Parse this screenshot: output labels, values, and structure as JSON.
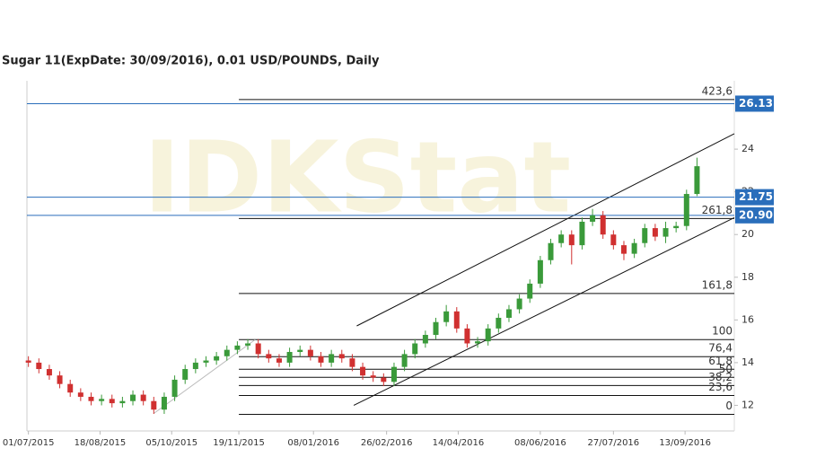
{
  "chart_data": {
    "type": "candlestick",
    "title": "Sugar 11(ExpDate: 30/09/2016), 0.01 USD/POUNDS, Daily",
    "watermark": "IDKStat",
    "x": [
      "01/07/2015",
      "08/07/2015",
      "15/07/2015",
      "22/07/2015",
      "29/07/2015",
      "05/08/2015",
      "12/08/2015",
      "19/08/2015",
      "26/08/2015",
      "02/09/2015",
      "09/09/2015",
      "16/09/2015",
      "23/09/2015",
      "30/09/2015",
      "07/10/2015",
      "14/10/2015",
      "21/10/2015",
      "28/10/2015",
      "04/11/2015",
      "11/11/2015",
      "18/11/2015",
      "25/11/2015",
      "02/12/2015",
      "09/12/2015",
      "16/12/2015",
      "23/12/2015",
      "30/12/2015",
      "06/01/2016",
      "13/01/2016",
      "20/01/2016",
      "27/01/2016",
      "03/02/2016",
      "10/02/2016",
      "17/02/2016",
      "24/02/2016",
      "02/03/2016",
      "09/03/2016",
      "16/03/2016",
      "23/03/2016",
      "30/03/2016",
      "06/04/2016",
      "13/04/2016",
      "20/04/2016",
      "27/04/2016",
      "04/05/2016",
      "11/05/2016",
      "18/05/2016",
      "25/05/2016",
      "01/06/2016",
      "08/06/2016",
      "15/06/2016",
      "22/06/2016",
      "29/06/2016",
      "06/07/2016",
      "13/07/2016",
      "20/07/2016",
      "27/07/2016",
      "03/08/2016",
      "10/08/2016",
      "17/08/2016",
      "24/08/2016",
      "31/08/2016",
      "07/09/2016",
      "14/09/2016",
      "21/09/2016"
    ],
    "open": [
      14.1,
      14.0,
      13.7,
      13.4,
      13.0,
      12.6,
      12.4,
      12.2,
      12.3,
      12.1,
      12.2,
      12.5,
      12.2,
      11.8,
      12.4,
      13.2,
      13.7,
      14.0,
      14.1,
      14.3,
      14.6,
      14.8,
      14.9,
      14.4,
      14.2,
      14.0,
      14.5,
      14.6,
      14.3,
      14.0,
      14.4,
      14.2,
      13.8,
      13.4,
      13.3,
      13.1,
      13.8,
      14.4,
      14.9,
      15.3,
      15.9,
      16.4,
      15.6,
      14.9,
      15.0,
      15.6,
      16.1,
      16.5,
      17.0,
      17.7,
      18.8,
      19.6,
      20.0,
      19.5,
      20.6,
      20.9,
      20.0,
      19.5,
      19.1,
      19.6,
      20.3,
      19.9,
      20.3,
      20.4,
      21.9
    ],
    "high": [
      14.3,
      14.2,
      13.9,
      13.6,
      13.2,
      12.8,
      12.6,
      12.5,
      12.5,
      12.4,
      12.7,
      12.7,
      12.4,
      12.6,
      13.4,
      13.9,
      14.2,
      14.3,
      14.5,
      14.8,
      15.0,
      15.1,
      15.1,
      14.6,
      14.4,
      14.7,
      14.8,
      14.8,
      14.5,
      14.6,
      14.6,
      14.4,
      14.0,
      13.6,
      13.5,
      14.0,
      14.6,
      15.1,
      15.5,
      16.1,
      16.7,
      16.6,
      15.8,
      15.2,
      15.8,
      16.3,
      16.7,
      17.2,
      17.9,
      19.0,
      19.8,
      20.2,
      20.2,
      20.8,
      21.2,
      21.1,
      20.2,
      19.7,
      19.8,
      20.5,
      20.5,
      20.6,
      20.6,
      22.1,
      23.6
    ],
    "low": [
      13.8,
      13.5,
      13.2,
      12.8,
      12.4,
      12.2,
      12.0,
      12.0,
      11.9,
      11.9,
      12.0,
      12.0,
      11.6,
      11.6,
      12.2,
      13.0,
      13.5,
      13.8,
      13.9,
      14.1,
      14.4,
      14.6,
      14.2,
      14.0,
      13.8,
      13.8,
      14.3,
      14.1,
      13.8,
      13.8,
      14.0,
      13.6,
      13.2,
      13.1,
      12.9,
      12.9,
      13.6,
      14.2,
      14.7,
      15.1,
      15.7,
      15.4,
      14.7,
      14.7,
      14.8,
      15.4,
      15.9,
      16.3,
      16.8,
      17.5,
      18.6,
      19.4,
      18.6,
      19.3,
      20.4,
      19.8,
      19.3,
      18.8,
      18.9,
      19.4,
      19.7,
      19.6,
      20.1,
      20.2,
      21.8
    ],
    "close": [
      14.0,
      13.7,
      13.4,
      13.0,
      12.6,
      12.4,
      12.2,
      12.3,
      12.1,
      12.2,
      12.5,
      12.2,
      11.8,
      12.4,
      13.2,
      13.7,
      14.0,
      14.1,
      14.3,
      14.6,
      14.8,
      14.9,
      14.4,
      14.2,
      14.0,
      14.5,
      14.6,
      14.3,
      14.0,
      14.4,
      14.2,
      13.8,
      13.4,
      13.3,
      13.1,
      13.8,
      14.4,
      14.9,
      15.3,
      15.9,
      16.4,
      15.6,
      14.9,
      15.0,
      15.6,
      16.1,
      16.5,
      17.0,
      17.7,
      18.8,
      19.6,
      20.0,
      19.5,
      20.6,
      20.9,
      20.0,
      19.5,
      19.1,
      19.6,
      20.3,
      19.9,
      20.3,
      20.4,
      21.9,
      23.2
    ],
    "up_color": "#3a9a3a",
    "down_color": "#d03030",
    "xlim": [
      "30/06/2015",
      "16/10/2016"
    ],
    "xticks": [
      "01/07/2015",
      "18/08/2015",
      "05/10/2015",
      "19/11/2015",
      "08/01/2016",
      "26/02/2016",
      "14/04/2016",
      "08/06/2016",
      "27/07/2016",
      "13/09/2016"
    ],
    "ylim": [
      10.8,
      27.2
    ],
    "yticks": [
      12,
      14,
      16,
      18,
      20,
      22,
      24
    ],
    "price_lines": [
      {
        "value": 26.13,
        "label": "26.13"
      },
      {
        "value": 21.75,
        "label": "21.75"
      },
      {
        "value": 20.9,
        "label": "20.90"
      }
    ],
    "price_line_color": "#2a6ebb",
    "fib_start": "19/11/2015",
    "fib_levels": [
      {
        "value": 26.32,
        "label": "423,6"
      },
      {
        "value": 20.75,
        "label": "261,8"
      },
      {
        "value": 17.24,
        "label": "161,8"
      },
      {
        "value": 15.08,
        "label": "100"
      },
      {
        "value": 14.28,
        "label": "76,4"
      },
      {
        "value": 13.69,
        "label": "61,8"
      },
      {
        "value": 13.31,
        "label": "50"
      },
      {
        "value": 12.93,
        "label": "38,2"
      },
      {
        "value": 12.46,
        "label": "23,6"
      },
      {
        "value": 11.58,
        "label": "0"
      }
    ],
    "trendlines": [
      {
        "x": [
          "06/02/2016",
          "16/10/2016"
        ],
        "y": [
          15.72,
          24.72
        ],
        "color": "#111111"
      },
      {
        "x": [
          "04/02/2016",
          "16/10/2016"
        ],
        "y": [
          12.0,
          20.79
        ],
        "color": "#111111"
      },
      {
        "x": [
          "23/09/2015",
          "30/11/2015"
        ],
        "y": [
          11.62,
          15.08
        ],
        "color": "#bbbbbb"
      }
    ]
  }
}
